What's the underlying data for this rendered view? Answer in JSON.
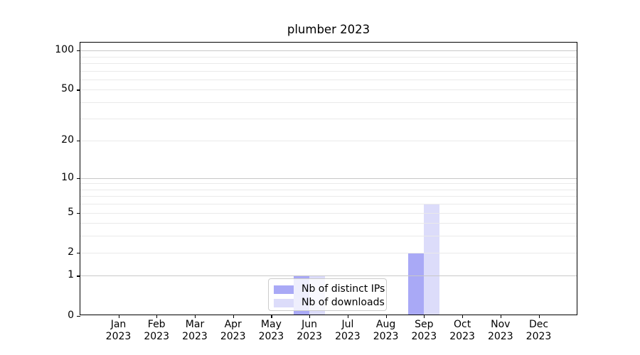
{
  "chart_data": {
    "type": "bar",
    "title": "plumber 2023",
    "categories": [
      "Jan 2023",
      "Feb 2023",
      "Mar 2023",
      "Apr 2023",
      "May 2023",
      "Jun 2023",
      "Jul 2023",
      "Aug 2023",
      "Sep 2023",
      "Oct 2023",
      "Nov 2023",
      "Dec 2023"
    ],
    "series": [
      {
        "name": "Nb of distinct IPs",
        "color": "#a9a9f6",
        "values": [
          0,
          0,
          0,
          0,
          0,
          1,
          0,
          0,
          2,
          0,
          0,
          0
        ]
      },
      {
        "name": "Nb of downloads",
        "color": "#dcdcfa",
        "values": [
          0,
          0,
          0,
          0,
          0,
          1,
          0,
          0,
          6,
          0,
          0,
          0
        ]
      }
    ],
    "y_axis": {
      "scale": "log1p",
      "labeled_ticks": [
        0,
        1,
        2,
        5,
        10,
        20,
        50,
        100
      ],
      "major_gridlines": [
        1,
        10,
        100
      ],
      "minor_gridlines": [
        2,
        3,
        4,
        5,
        6,
        7,
        8,
        9,
        20,
        30,
        40,
        50,
        60,
        70,
        80,
        90
      ],
      "ylim": [
        0,
        115
      ],
      "grid": true
    },
    "legend": {
      "position": "lower center",
      "entries": [
        "Nb of distinct IPs",
        "Nb of downloads"
      ]
    }
  },
  "colors": {
    "bar_distinct_ips": "#a9a9f6",
    "bar_downloads": "#dcdcfa",
    "major_grid": "#c8c8c8",
    "minor_grid": "#eaeaea",
    "axis_spine": "#000000",
    "text": "#000000",
    "legend_border": "#cccccc"
  }
}
